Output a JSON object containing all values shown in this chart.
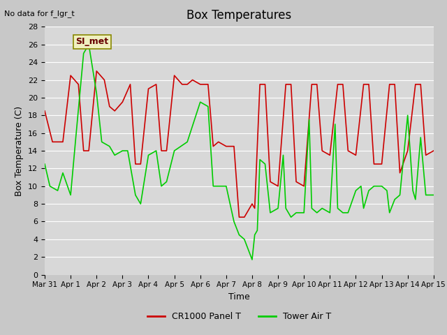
{
  "title": "Box Temperatures",
  "xlabel": "Time",
  "ylabel": "Box Temperature (C)",
  "top_left_text": "No data for f_lgr_t",
  "annotation_box": "SI_met",
  "ylim": [
    0,
    28
  ],
  "yticks": [
    0,
    2,
    4,
    6,
    8,
    10,
    12,
    14,
    16,
    18,
    20,
    22,
    24,
    26,
    28
  ],
  "xtick_labels": [
    "Mar 31",
    "Apr 1",
    "Apr 2",
    "Apr 3",
    "Apr 4",
    "Apr 5",
    "Apr 6",
    "Apr 7",
    "Apr 8",
    "Apr 9",
    "Apr 10",
    "Apr 11",
    "Apr 12",
    "Apr 13",
    "Apr 14",
    "Apr 15"
  ],
  "bg_color": "#e8e8e8",
  "plot_bg_color": "#d8d8d8",
  "grid_color": "#ffffff",
  "red_color": "#cc0000",
  "green_color": "#00cc00",
  "legend_entries": [
    "CR1000 Panel T",
    "Tower Air T"
  ],
  "red_x": [
    0,
    0.3,
    0.7,
    1,
    1.3,
    1.5,
    1.7,
    2,
    2.3,
    2.5,
    2.7,
    3,
    3.3,
    3.5,
    3.7,
    4,
    4.3,
    4.5,
    4.7,
    5,
    5.3,
    5.5,
    5.7,
    6,
    6.3,
    6.5,
    6.7,
    7,
    7.3,
    7.5,
    7.7,
    8,
    8.1,
    8.3,
    8.5,
    8.7,
    9,
    9.3,
    9.5,
    9.7,
    10,
    10.3,
    10.5,
    10.7,
    11,
    11.3,
    11.5,
    11.7,
    12,
    12.3,
    12.5,
    12.7,
    13,
    13.3,
    13.5,
    13.7,
    14,
    14.3,
    14.5,
    14.7,
    15
  ],
  "red_y": [
    18.5,
    15,
    15,
    22.5,
    21.5,
    14,
    14,
    23,
    22,
    19,
    18.5,
    19.5,
    21.5,
    12.5,
    12.5,
    21,
    21.5,
    14,
    14,
    22.5,
    21.5,
    21.5,
    22,
    21.5,
    21.5,
    14.5,
    15,
    14.5,
    14.5,
    6.5,
    6.5,
    8,
    7.5,
    21.5,
    21.5,
    10.5,
    10,
    21.5,
    21.5,
    10.5,
    10,
    21.5,
    21.5,
    14,
    13.5,
    21.5,
    21.5,
    14,
    13.5,
    21.5,
    21.5,
    12.5,
    12.5,
    21.5,
    21.5,
    11.5,
    14,
    21.5,
    21.5,
    13.5,
    14
  ],
  "green_x": [
    0,
    0.2,
    0.5,
    0.7,
    1,
    1.2,
    1.5,
    1.7,
    2,
    2.2,
    2.5,
    2.7,
    3,
    3.2,
    3.5,
    3.7,
    4,
    4.3,
    4.5,
    4.7,
    5,
    5.5,
    6,
    6.3,
    6.5,
    6.7,
    7,
    7.3,
    7.5,
    7.7,
    8,
    8.1,
    8.2,
    8.3,
    8.5,
    8.7,
    9,
    9.2,
    9.3,
    9.5,
    9.7,
    10,
    10.2,
    10.3,
    10.5,
    10.7,
    11,
    11.2,
    11.3,
    11.5,
    11.7,
    12,
    12.2,
    12.3,
    12.5,
    12.7,
    13,
    13.2,
    13.3,
    13.5,
    13.7,
    14,
    14.2,
    14.3,
    14.5,
    14.7,
    15
  ],
  "green_y": [
    12.5,
    10,
    9.5,
    11.5,
    9,
    15.5,
    25,
    26,
    20.5,
    15,
    14.5,
    13.5,
    14,
    14,
    9,
    8,
    13.5,
    14,
    10,
    10.5,
    14,
    15,
    19.5,
    19,
    10,
    10,
    10,
    6,
    4.5,
    4,
    1.7,
    4.5,
    5,
    13,
    12.5,
    7,
    7.5,
    13.5,
    7.5,
    6.5,
    7,
    7,
    17.5,
    7.5,
    7,
    7.5,
    7,
    17,
    7.5,
    7,
    7,
    9.5,
    10,
    7.5,
    9.5,
    10,
    10,
    9.5,
    7,
    8.5,
    9,
    18,
    9.5,
    8.5,
    15.5,
    9,
    9
  ]
}
